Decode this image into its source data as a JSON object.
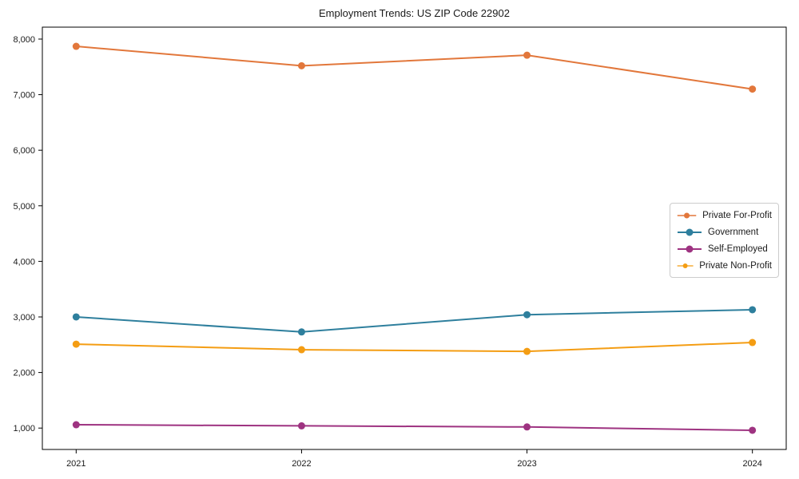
{
  "chart_data": {
    "type": "line",
    "title": "Employment Trends: US ZIP Code 22902",
    "categories": [
      "2021",
      "2022",
      "2023",
      "2024"
    ],
    "series": [
      {
        "name": "Private For-Profit",
        "color": "#E2773B",
        "values": [
          7870,
          7520,
          7710,
          7100
        ]
      },
      {
        "name": "Government",
        "color": "#2E7F9D",
        "values": [
          3000,
          2730,
          3040,
          3130
        ]
      },
      {
        "name": "Self-Employed",
        "color": "#9E3381",
        "values": [
          1060,
          1040,
          1020,
          960
        ]
      },
      {
        "name": "Private Non-Profit",
        "color": "#F49D13",
        "values": [
          2510,
          2410,
          2380,
          2540
        ]
      }
    ],
    "xlabel": "",
    "ylabel": "",
    "ylim": [
      615,
      8215
    ],
    "yticks": [
      1000,
      2000,
      3000,
      4000,
      5000,
      6000,
      7000,
      8000
    ],
    "ytick_labels": [
      "1,000",
      "2,000",
      "3,000",
      "4,000",
      "5,000",
      "6,000",
      "7,000",
      "8,000"
    ],
    "grid": false,
    "legend_position": "center right",
    "marker": "circle",
    "axis_color": "#000000",
    "background_color": "#ffffff"
  }
}
